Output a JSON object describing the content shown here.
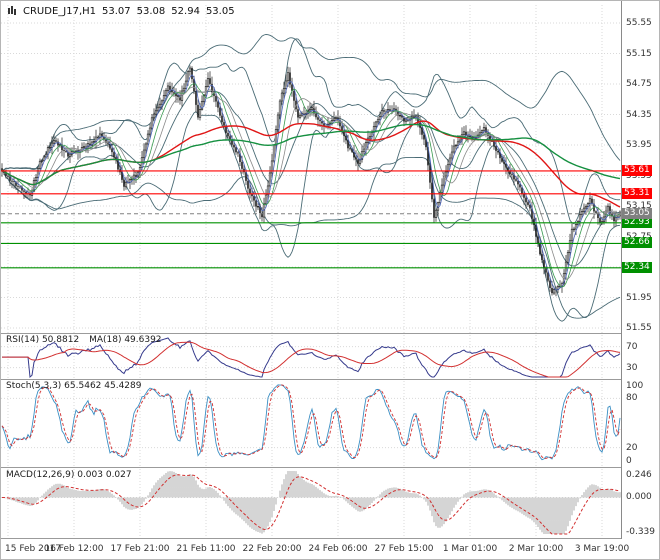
{
  "header": {
    "symbol_period": "CRUDE_J17,H1",
    "open": "53.07",
    "high": "53.08",
    "low": "52.94",
    "close": "53.05"
  },
  "colors": {
    "background": "#ffffff",
    "grid": "#d9d9d9",
    "candle": "#1a1a1a",
    "bb": "#4a6b75",
    "ma_red": "#e01515",
    "ma_green": "#159040",
    "fast_ma_blue": "#4a63b8",
    "fast_ma_green": "#3a9a50",
    "fast_ma_gray": "#8a8a8a",
    "rsi": "#353a8c",
    "rsi_ma": "#d23030",
    "stoch_k": "#3b8fc4",
    "stoch_d": "#d23030",
    "macd_hist": "#b9b9b9",
    "macd_signal": "#d23030",
    "axis_text": "#333333",
    "divider": "#9b9b9b"
  },
  "chart_data": {
    "type": "candlestick",
    "symbol": "CRUDE_J17",
    "timeframe": "H1",
    "bars": 310,
    "price_axis": {
      "labels": [
        "55.55",
        "55.15",
        "54.75",
        "54.35",
        "53.95",
        "53.55",
        "53.15",
        "52.75",
        "52.35",
        "51.95",
        "51.55"
      ],
      "min": 51.485,
      "max": 55.786
    },
    "time_axis": {
      "labels": [
        "15 Feb 2017",
        "16 Feb 12:00",
        "17 Feb 21:00",
        "21 Feb 11:00",
        "22 Feb 20:00",
        "24 Feb 06:00",
        "27 Feb 15:00",
        "1 Mar 01:00",
        "2 Mar 10:00",
        "3 Mar 19:00"
      ],
      "positions": [
        3,
        36,
        69,
        102,
        135,
        168,
        201,
        234,
        267,
        300
      ]
    },
    "levels": [
      {
        "price": 53.61,
        "label": "53.61",
        "color": "#ff0000"
      },
      {
        "price": 53.31,
        "label": "53.31",
        "color": "#ff0000"
      },
      {
        "price": 52.93,
        "label": "52.93",
        "color": "#009000"
      },
      {
        "price": 52.66,
        "label": "52.66",
        "color": "#009000"
      },
      {
        "price": 52.34,
        "label": "52.34",
        "color": "#009000"
      }
    ],
    "current_price": {
      "value": 53.05,
      "label": "53.05",
      "color": "#808080"
    },
    "anchors": [
      [
        0,
        53.62
      ],
      [
        7,
        53.42
      ],
      [
        14,
        53.28
      ],
      [
        19,
        53.72
      ],
      [
        26,
        54.02
      ],
      [
        33,
        53.82
      ],
      [
        42,
        53.92
      ],
      [
        49,
        54.08
      ],
      [
        55,
        53.88
      ],
      [
        61,
        53.42
      ],
      [
        68,
        53.58
      ],
      [
        75,
        54.28
      ],
      [
        83,
        54.72
      ],
      [
        89,
        54.55
      ],
      [
        94,
        54.98
      ],
      [
        98,
        54.32
      ],
      [
        103,
        54.82
      ],
      [
        111,
        54.18
      ],
      [
        118,
        53.82
      ],
      [
        124,
        53.32
      ],
      [
        130,
        53.02
      ],
      [
        134,
        53.58
      ],
      [
        139,
        54.52
      ],
      [
        143,
        54.88
      ],
      [
        148,
        54.32
      ],
      [
        155,
        54.42
      ],
      [
        161,
        54.18
      ],
      [
        167,
        54.32
      ],
      [
        173,
        53.92
      ],
      [
        178,
        53.72
      ],
      [
        184,
        54.08
      ],
      [
        190,
        54.38
      ],
      [
        196,
        54.42
      ],
      [
        201,
        54.28
      ],
      [
        207,
        54.32
      ],
      [
        212,
        53.92
      ],
      [
        216,
        52.98
      ],
      [
        221,
        53.52
      ],
      [
        226,
        53.92
      ],
      [
        231,
        54.12
      ],
      [
        236,
        54.02
      ],
      [
        241,
        54.18
      ],
      [
        247,
        53.88
      ],
      [
        253,
        53.62
      ],
      [
        259,
        53.38
      ],
      [
        264,
        53.12
      ],
      [
        270,
        52.42
      ],
      [
        275,
        52.02
      ],
      [
        280,
        52.12
      ],
      [
        285,
        52.82
      ],
      [
        289,
        53.02
      ],
      [
        294,
        53.22
      ],
      [
        299,
        52.92
      ],
      [
        303,
        53.12
      ],
      [
        306,
        52.96
      ],
      [
        309,
        53.05
      ]
    ],
    "panels": {
      "rsi": {
        "label": "RSI(14) 50.8812",
        "ma_label": "MA(18) 49.6392",
        "axis_labels": [
          "70",
          "30"
        ],
        "levels": [
          70,
          30
        ],
        "period": 14,
        "ma_period": 18
      },
      "stoch": {
        "label": "Stoch(5,3,3) 65.5462 45.4289",
        "axis_labels": [
          "100",
          "80",
          "20",
          "0"
        ],
        "levels": [
          80,
          20
        ]
      },
      "macd": {
        "label": "MACD(12,26,9) 0.003 0.027",
        "axis_labels": [
          "0.246",
          "0.000",
          "-0.339"
        ],
        "range": [
          0.246,
          -0.339
        ]
      }
    }
  }
}
